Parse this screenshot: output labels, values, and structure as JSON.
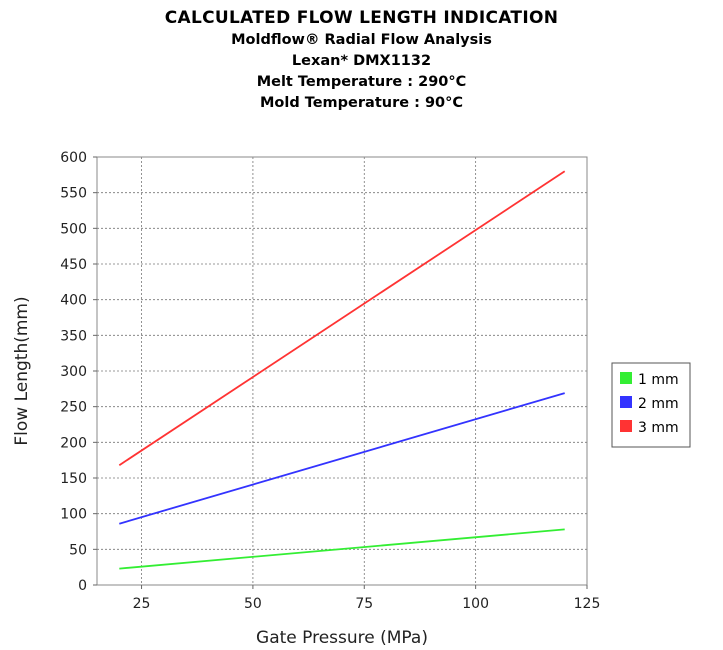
{
  "chart_data": {
    "type": "line",
    "title": "CALCULATED FLOW LENGTH INDICATION",
    "subtitles": [
      "Moldflow® Radial Flow Analysis",
      "Lexan*  DMX1132",
      "Melt Temperature : 290°C",
      "Mold Temperature : 90°C"
    ],
    "xlabel": "Gate Pressure (MPa)",
    "ylabel": "Flow Length(mm)",
    "xlim": [
      15,
      125
    ],
    "ylim": [
      0,
      600
    ],
    "x_ticks": [
      25,
      50,
      75,
      100,
      125
    ],
    "y_ticks": [
      0,
      50,
      100,
      150,
      200,
      250,
      300,
      350,
      400,
      450,
      500,
      550,
      600
    ],
    "grid": true,
    "legend_position": "right",
    "series": [
      {
        "name": "1 mm",
        "color": "#33ee33",
        "x": [
          20,
          120
        ],
        "y": [
          23,
          78
        ]
      },
      {
        "name": "2 mm",
        "color": "#3333ff",
        "x": [
          20,
          120
        ],
        "y": [
          86,
          269
        ]
      },
      {
        "name": "3 mm",
        "color": "#ff3333",
        "x": [
          20,
          120
        ],
        "y": [
          168,
          580
        ]
      }
    ]
  }
}
